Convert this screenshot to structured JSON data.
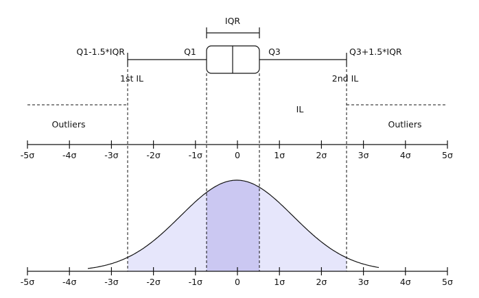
{
  "labels": {
    "iqr": "IQR",
    "lower_fence": "Q1-1.5*IQR",
    "q1": "Q1",
    "q3": "Q3",
    "upper_fence": "Q3+1.5*IQR",
    "first_il": "1st IL",
    "second_il": "2nd IL",
    "il": "IL",
    "outliers_left": "Outliers",
    "outliers_right": "Outliers"
  },
  "ticks": [
    "-5σ",
    "-4σ",
    "-3σ",
    "-2σ",
    "-1σ",
    "0",
    "1σ",
    "2σ",
    "3σ",
    "4σ",
    "5σ"
  ],
  "colors": {
    "tail_fill": "#e6e6fb",
    "iqr_fill": "#cbc8f2",
    "line": "#111111"
  }
}
